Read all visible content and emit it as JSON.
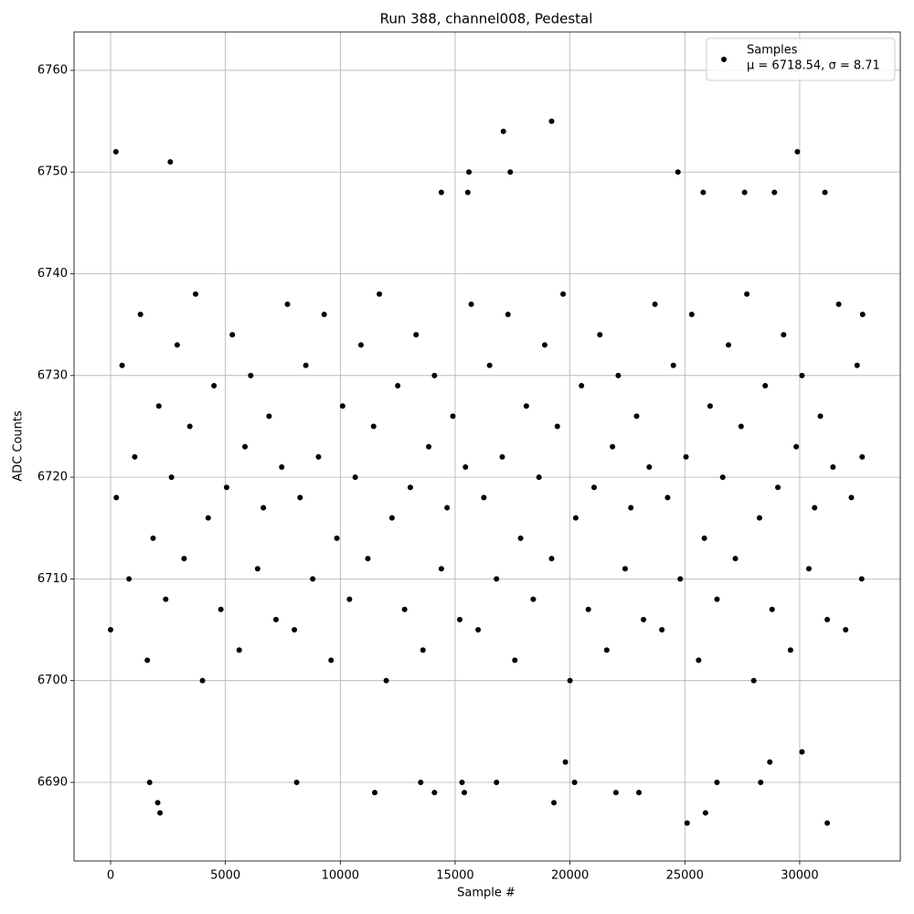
{
  "chart_data": {
    "type": "scatter",
    "title": "Run 388, channel008, Pedestal",
    "x_label": "Sample #",
    "y_label": "ADC Counts",
    "xlim": [
      -1592,
      34380
    ],
    "ylim": [
      6682.27,
      6763.77
    ],
    "xticks": [
      0,
      5000,
      10000,
      15000,
      20000,
      25000,
      30000
    ],
    "yticks": [
      6690,
      6700,
      6710,
      6720,
      6730,
      6740,
      6750,
      6760
    ],
    "grid": true,
    "legend_position": "upper right",
    "legend_note": "μ = 6718.54, σ = 8.71",
    "series": [
      {
        "name": "Samples",
        "color": "#000000",
        "x": [
          0,
          250,
          500,
          800,
          1050,
          1300,
          1600,
          1850,
          2100,
          2400,
          2650,
          2900,
          3200,
          3450,
          3700,
          4000,
          4250,
          4500,
          4800,
          5050,
          5300,
          5600,
          5850,
          6100,
          6400,
          6650,
          6900,
          7200,
          7450,
          7700,
          8000,
          8250,
          8500,
          8800,
          9050,
          9300,
          9600,
          9850,
          10100,
          10400,
          10650,
          10900,
          11200,
          11450,
          11700,
          12000,
          12250,
          12500,
          12800,
          13050,
          13300,
          13600,
          13850,
          14100,
          14400,
          14650,
          14900,
          15200,
          15450,
          15700,
          16000,
          16250,
          16500,
          16800,
          17050,
          17300,
          17600,
          17850,
          18100,
          18400,
          18650,
          18900,
          19200,
          19450,
          19700,
          20000,
          20250,
          20500,
          20800,
          21050,
          21300,
          21600,
          21850,
          22100,
          22400,
          22650,
          22900,
          23200,
          23450,
          23700,
          24000,
          24250,
          24500,
          24800,
          25050,
          25300,
          25600,
          25850,
          26100,
          26400,
          26650,
          26900,
          27200,
          27450,
          27700,
          28000,
          28250,
          28500,
          28800,
          29050,
          29300,
          29600,
          29850,
          30100,
          30400,
          30650,
          30900,
          31200,
          31450,
          31700,
          32000,
          32250,
          32500,
          32700,
          32720,
          32740,
          230,
          2600,
          19200,
          17100,
          29900,
          15600,
          17400,
          24700,
          14400,
          15550,
          25800,
          27600,
          28900,
          31100,
          25100,
          31200,
          2150,
          25900,
          2050,
          19300,
          1700,
          8100,
          13500,
          15300,
          16800,
          20200,
          26400,
          28300,
          11500,
          14100,
          15400,
          22000,
          23000,
          30100,
          28700,
          19800
        ],
        "values": [
          6705,
          6718,
          6731,
          6710,
          6722,
          6736,
          6702,
          6714,
          6727,
          6708,
          6720,
          6733,
          6712,
          6725,
          6738,
          6700,
          6716,
          6729,
          6707,
          6719,
          6734,
          6703,
          6723,
          6730,
          6711,
          6717,
          6726,
          6706,
          6721,
          6737,
          6705,
          6718,
          6731,
          6710,
          6722,
          6736,
          6702,
          6714,
          6727,
          6708,
          6720,
          6733,
          6712,
          6725,
          6738,
          6700,
          6716,
          6729,
          6707,
          6719,
          6734,
          6703,
          6723,
          6730,
          6711,
          6717,
          6726,
          6706,
          6721,
          6737,
          6705,
          6718,
          6731,
          6710,
          6722,
          6736,
          6702,
          6714,
          6727,
          6708,
          6720,
          6733,
          6712,
          6725,
          6738,
          6700,
          6716,
          6729,
          6707,
          6719,
          6734,
          6703,
          6723,
          6730,
          6711,
          6717,
          6726,
          6706,
          6721,
          6737,
          6705,
          6718,
          6731,
          6710,
          6722,
          6736,
          6702,
          6714,
          6727,
          6708,
          6720,
          6733,
          6712,
          6725,
          6738,
          6700,
          6716,
          6729,
          6707,
          6719,
          6734,
          6703,
          6723,
          6730,
          6711,
          6717,
          6726,
          6706,
          6721,
          6737,
          6705,
          6718,
          6731,
          6710,
          6722,
          6736,
          6752,
          6751,
          6755,
          6754,
          6752,
          6750,
          6750,
          6750,
          6748,
          6748,
          6748,
          6748,
          6748,
          6748,
          6686,
          6686,
          6687,
          6687,
          6688,
          6688,
          6690,
          6690,
          6690,
          6690,
          6690,
          6690,
          6690,
          6690,
          6689,
          6689,
          6689,
          6689,
          6689,
          6693,
          6692,
          6692
        ]
      }
    ]
  }
}
